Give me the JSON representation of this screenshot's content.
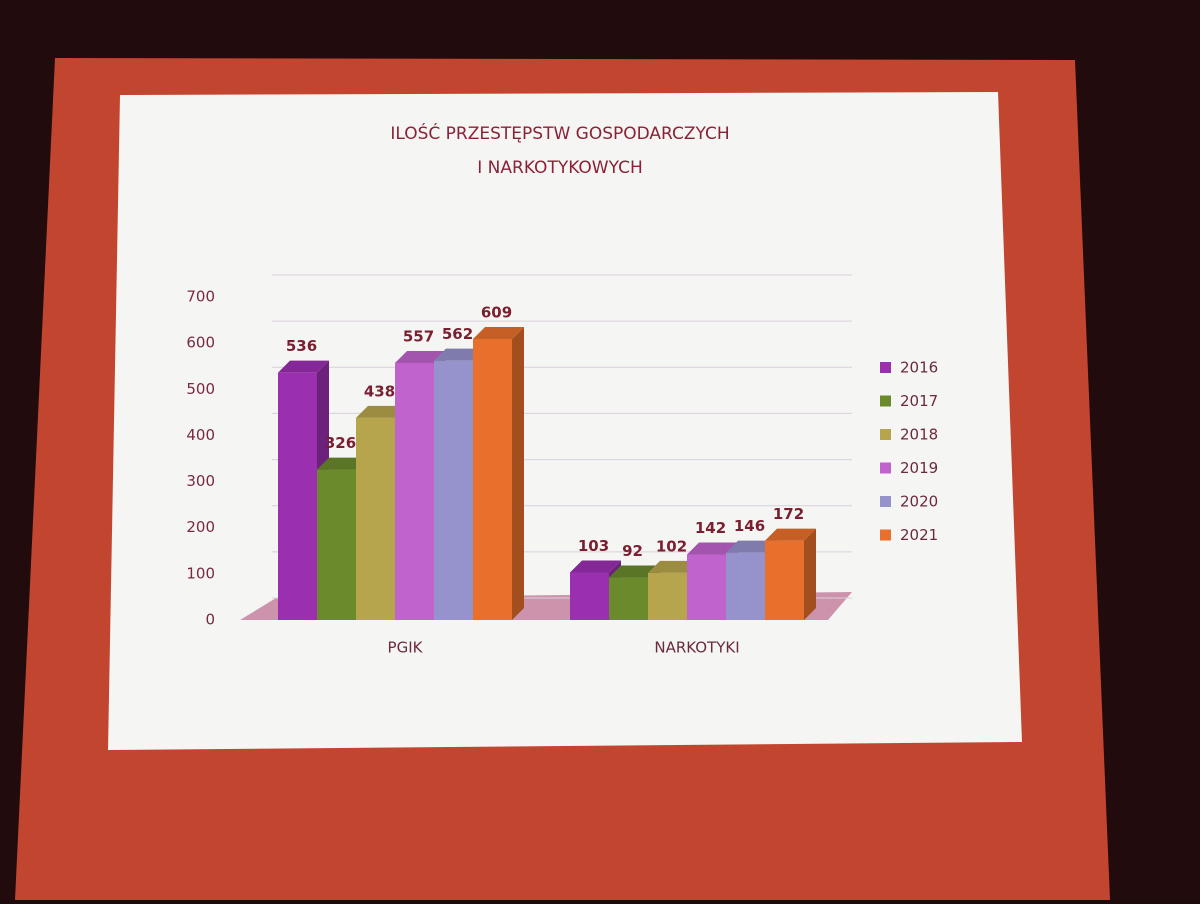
{
  "chart_data": {
    "type": "bar3d",
    "title": [
      "ILOŚĆ PRZESTĘPSTW GOSPODARCZYCH",
      "I NARKOTYKOWYCH"
    ],
    "categories": [
      "PGIK",
      "NARKOTYKI"
    ],
    "series": [
      {
        "name": "2016",
        "color": "#9a2fb0",
        "values": [
          536,
          103
        ]
      },
      {
        "name": "2017",
        "color": "#6a8a2c",
        "values": [
          326,
          92
        ]
      },
      {
        "name": "2018",
        "color": "#b6a54c",
        "values": [
          438,
          102
        ]
      },
      {
        "name": "2019",
        "color": "#c063cc",
        "values": [
          557,
          142
        ]
      },
      {
        "name": "2020",
        "color": "#9592cc",
        "values": [
          562,
          146
        ]
      },
      {
        "name": "2021",
        "color": "#e8702c",
        "values": [
          609,
          172
        ]
      }
    ],
    "ylim": [
      0,
      700
    ],
    "yticks": [
      0,
      100,
      200,
      300,
      400,
      500,
      600,
      700
    ],
    "grid": true,
    "legend": "right"
  }
}
